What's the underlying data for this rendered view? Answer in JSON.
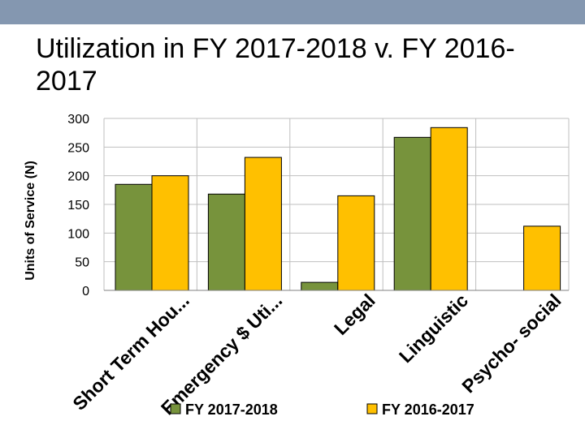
{
  "slide": {
    "title": "Utilization in FY 2017-2018 v. FY 2016-2017",
    "title_line1": "Utilization in FY 2017-2018 v. FY 2016-",
    "title_line2": "2017"
  },
  "colors": {
    "top_bar": "#8497b0",
    "series_2017_2018": "#77933c",
    "series_2016_2017": "#ffc000",
    "grid": "#bfbfbf",
    "bar_outline": "#000000"
  },
  "chart_data": {
    "type": "bar",
    "title": "Utilization in FY 2017-2018 v. FY 2016-2017",
    "xlabel": "",
    "ylabel": "Units of Service (N)",
    "ylim": [
      0,
      300
    ],
    "yticks": [
      "0",
      "50",
      "100",
      "150",
      "200",
      "250",
      "300"
    ],
    "grid": true,
    "legend_position": "bottom",
    "categories": [
      "Short Term Hou...",
      "Emergency $ Uti...",
      "Legal",
      "Linguistic",
      "Psycho- social"
    ],
    "series": [
      {
        "name": "FY 2017-2018",
        "color": "#77933c",
        "values": [
          185,
          168,
          14,
          267,
          0
        ]
      },
      {
        "name": "FY 2016-2017",
        "color": "#ffc000",
        "values": [
          200,
          232,
          165,
          284,
          112
        ]
      }
    ]
  }
}
